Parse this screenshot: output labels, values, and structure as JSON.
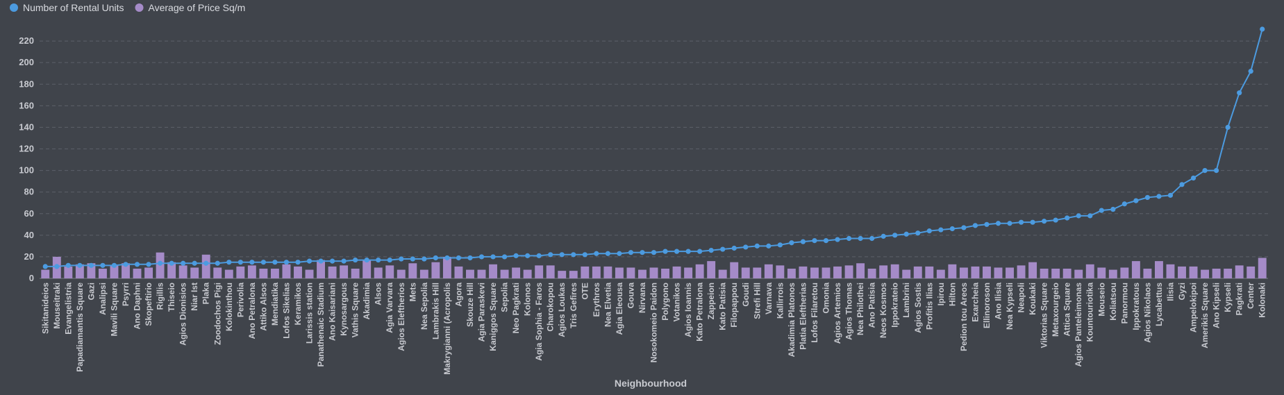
{
  "chart_data": {
    "type": "combo",
    "x_label": "Neighbourhood",
    "categories": [
      "Sikitanideios",
      "Mouseitraki",
      "Evangelistria",
      "Papadiamantis Square",
      "Gazi",
      "Analipsi",
      "Mavili Square",
      "Psyrri",
      "Ano Daphni",
      "Skopeftirio",
      "Rigillis",
      "Thiseio",
      "Agios Dionisios",
      "Niar Ist",
      "Plaka",
      "Zoodochos Pigi",
      "Kolokinthou",
      "Perivolia",
      "Ano Petralona",
      "Attiko Alsos",
      "Mendiatika",
      "Lofos Sikelias",
      "Keramikos",
      "Larissis station",
      "Panathenaic Stadium",
      "Ano Kaisariani",
      "Kynosargous",
      "Vathis Square",
      "Akadimia",
      "Alsos",
      "Agia Varvara",
      "Agios Eleftherios",
      "Mets",
      "Nea Sepolia",
      "Lambrakis Hill",
      "Makrygianni (Acropolis",
      "Agora",
      "Skouze Hill",
      "Agia Paraskevi",
      "Kaniggos Square",
      "Sepolia",
      "Neo Pagkrati",
      "Kolonos",
      "Agia Sophia - Faros",
      "Charokopou",
      "Agios Loukas",
      "Tris Gefires",
      "OTE",
      "Erythros",
      "Nea Elvetia",
      "Agia Eleousa",
      "Gouva",
      "Nirvana",
      "Nosokomeio Paidon",
      "Polygono",
      "Votanikos",
      "Agios Ioannis",
      "Kato Petralona",
      "Zappeion",
      "Kato Patisia",
      "Filopappou",
      "Goudi",
      "Strefi Hill",
      "Varnava",
      "Kallirrois",
      "Akadimia Platonos",
      "Platia Eleftherias",
      "Lofos Filaretou",
      "Omonia",
      "Agios Artemios",
      "Agios Thomas",
      "Nea Philothei",
      "Ano Patisia",
      "Neos Kosmos",
      "Ippokrateio",
      "Lambrini",
      "Agios Sostis",
      "Profitis Ilias",
      "Ipirou",
      "Hilton",
      "Pedion tou Areos",
      "Exarcheia",
      "Ellinoroson",
      "Ano Ilisia",
      "Nea Kypseli",
      "Neapoli",
      "Koukaki",
      "Viktorias Square",
      "Metaxourgeio",
      "Attica Square",
      "Agios Panteleimonas",
      "Kountouriotika",
      "Mouseio",
      "Koliatsou",
      "Panormou",
      "Ippokratous",
      "Agios Nikolaos",
      "Lycabettus",
      "Ilisia",
      "Gyzi",
      "Ampelokipoi",
      "Amerikis Square",
      "Ano Kipseli",
      "Kypseli",
      "Pagkrati",
      "Center",
      "Kolonaki"
    ],
    "series": [
      {
        "name": "Number of Rental Units",
        "type": "line",
        "color": "#4c9be0",
        "values": [
          11,
          11,
          12,
          12,
          12,
          12,
          12,
          13,
          13,
          13,
          14,
          14,
          14,
          14,
          14,
          14,
          15,
          15,
          15,
          15,
          15,
          15,
          15,
          16,
          16,
          16,
          16,
          17,
          17,
          17,
          17,
          18,
          18,
          18,
          19,
          19,
          19,
          19,
          20,
          20,
          20,
          21,
          21,
          21,
          22,
          22,
          22,
          22,
          23,
          23,
          23,
          24,
          24,
          24,
          25,
          25,
          25,
          25,
          26,
          27,
          28,
          29,
          30,
          30,
          31,
          33,
          34,
          35,
          35,
          36,
          37,
          37,
          37,
          39,
          40,
          41,
          42,
          44,
          45,
          46,
          47,
          49,
          50,
          51,
          51,
          52,
          52,
          53,
          54,
          56,
          58,
          58,
          63,
          64,
          69,
          72,
          75,
          76,
          77,
          87,
          93,
          100,
          100,
          140,
          172,
          192,
          231
        ]
      },
      {
        "name": "Average of Price Sq/m",
        "type": "bar",
        "color": "#a58bc8",
        "values": [
          8,
          20,
          11,
          13,
          14,
          9,
          12,
          14,
          9,
          10,
          24,
          15,
          12,
          10,
          22,
          10,
          8,
          11,
          12,
          9,
          9,
          13,
          11,
          8,
          17,
          11,
          12,
          9,
          17,
          10,
          12,
          8,
          14,
          8,
          15,
          20,
          11,
          8,
          8,
          13,
          8,
          10,
          8,
          12,
          12,
          7,
          7,
          11,
          11,
          11,
          10,
          10,
          8,
          10,
          9,
          11,
          10,
          13,
          16,
          8,
          15,
          10,
          10,
          13,
          12,
          9,
          11,
          10,
          10,
          11,
          12,
          14,
          9,
          12,
          13,
          8,
          11,
          11,
          8,
          13,
          10,
          11,
          11,
          10,
          10,
          12,
          15,
          9,
          9,
          9,
          8,
          13,
          10,
          8,
          10,
          16,
          9,
          16,
          13,
          11,
          11,
          8,
          9,
          9,
          12,
          11,
          19
        ]
      }
    ],
    "ylim": [
      0,
      231
    ],
    "yticks": [
      0,
      20,
      40,
      60,
      80,
      100,
      120,
      140,
      160,
      180,
      200,
      220
    ],
    "grid": true,
    "legend": "top-left"
  }
}
